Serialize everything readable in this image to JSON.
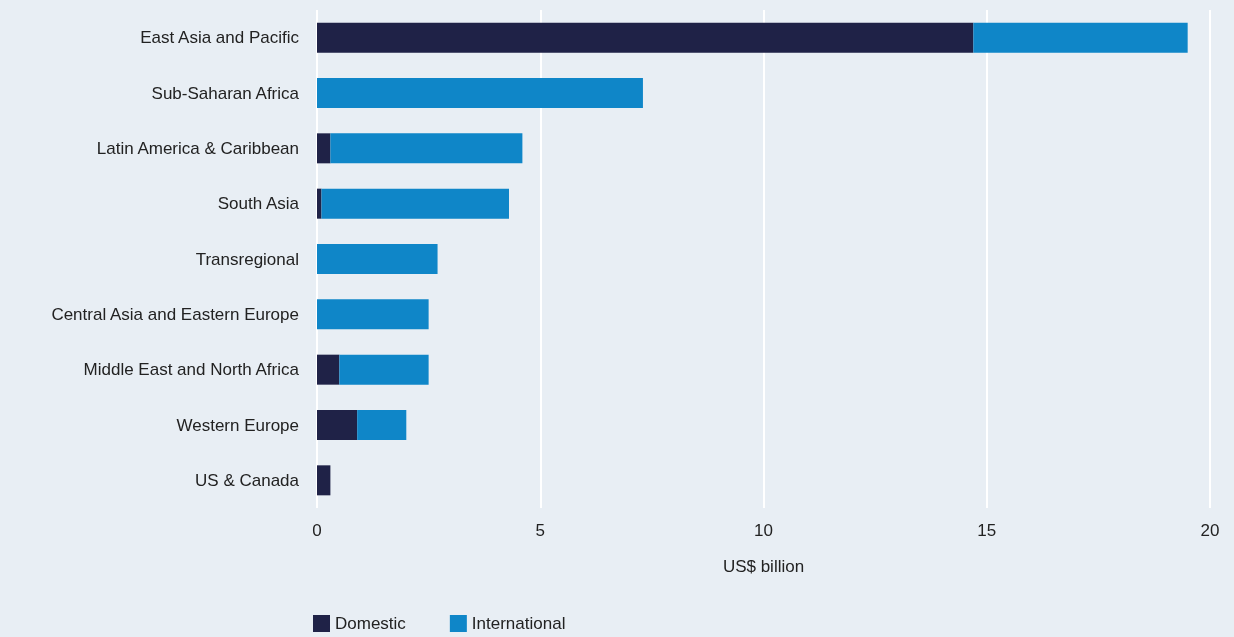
{
  "chart_data": {
    "type": "bar",
    "orientation": "horizontal",
    "stacked": true,
    "xlabel": "US$ billion",
    "categories": [
      "East Asia and Pacific",
      "Sub-Saharan Africa",
      "Latin America & Caribbean",
      "South Asia",
      "Transregional",
      "Central Asia and Eastern Europe",
      "Middle East and North Africa",
      "Western Europe",
      "US & Canada"
    ],
    "series": [
      {
        "name": "Domestic",
        "color": "#1f2247",
        "values": [
          14.7,
          0,
          0.3,
          0.1,
          0,
          0,
          0.5,
          0.9,
          0.3
        ]
      },
      {
        "name": "International",
        "color": "#0f86c8",
        "values": [
          4.8,
          7.3,
          4.3,
          4.2,
          2.7,
          2.5,
          2.0,
          1.1,
          0
        ]
      }
    ],
    "xlim": [
      0,
      20
    ],
    "xticks": [
      0,
      5,
      10,
      15,
      20
    ],
    "grid": "x",
    "legend": "bottom left"
  }
}
